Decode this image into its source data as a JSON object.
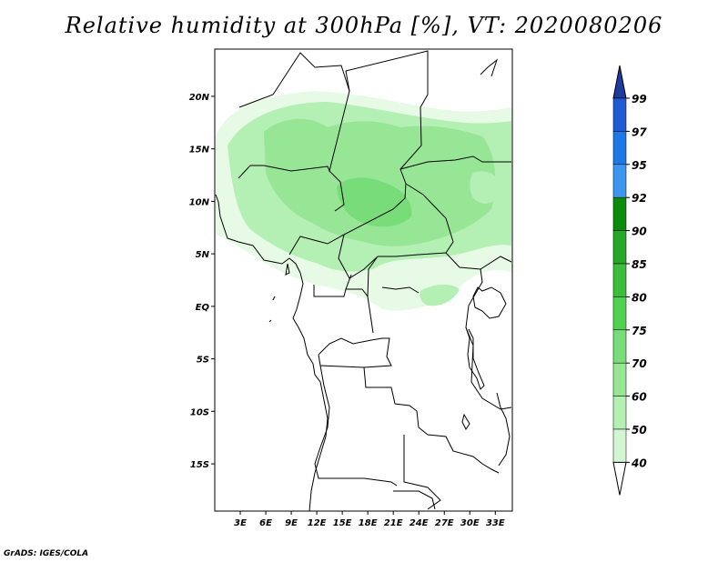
{
  "title": "Relative humidity at 300hPa [%], VT: 2020080206",
  "credit": "GrADS: IGES/COLA",
  "map": {
    "lat_labels": [
      "20N",
      "15N",
      "10N",
      "5N",
      "EQ",
      "5S",
      "10S",
      "15S"
    ],
    "lat_values": [
      20,
      15,
      10,
      5,
      0,
      -5,
      -10,
      -15
    ],
    "lon_labels": [
      "3E",
      "6E",
      "9E",
      "12E",
      "15E",
      "18E",
      "21E",
      "24E",
      "27E",
      "30E",
      "33E"
    ],
    "lon_values": [
      3,
      6,
      9,
      12,
      15,
      18,
      21,
      24,
      27,
      30,
      33
    ],
    "lon_range": [
      0,
      35
    ],
    "lat_range": [
      -19.5,
      24.5
    ]
  },
  "colorbar": {
    "levels": [
      "99",
      "97",
      "95",
      "92",
      "90",
      "85",
      "80",
      "75",
      "70",
      "60",
      "50",
      "40"
    ],
    "colors": [
      "#1e5ad2",
      "#1e78e6",
      "#3c96f0",
      "#0a8c0a",
      "#28a628",
      "#3cbe3c",
      "#50d250",
      "#78dc78",
      "#96e696",
      "#b4f0b4",
      "#d2f5d2",
      "#e6fae6"
    ],
    "top_arrow_color": "#1e3ca0",
    "bottom_arrow_color": "#ffffff"
  },
  "field_colors": {
    "light": "#e6fae6",
    "mid": "#b4f0b4",
    "dark": "#96e696",
    "deep": "#78dc78"
  }
}
